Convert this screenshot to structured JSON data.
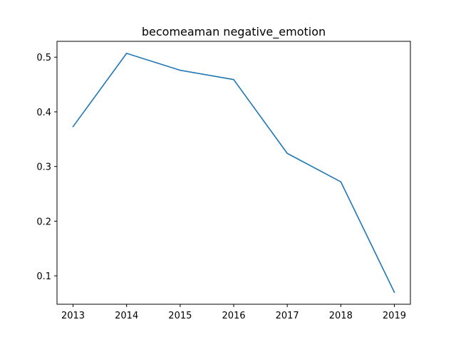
{
  "chart_data": {
    "type": "line",
    "title": "becomeaman negative_emotion",
    "xlabel": "",
    "ylabel": "",
    "x": [
      2013,
      2014,
      2015,
      2016,
      2017,
      2018,
      2019
    ],
    "x_tick_labels": [
      "2013",
      "2014",
      "2015",
      "2016",
      "2017",
      "2018",
      "2019"
    ],
    "series": [
      {
        "values": [
          0.373,
          0.507,
          0.476,
          0.459,
          0.324,
          0.272,
          0.07
        ],
        "color": "#1f77b4"
      }
    ],
    "xlim": [
      2012.7,
      2019.3
    ],
    "ylim": [
      0.048,
      0.529
    ],
    "y_ticks": [
      0.1,
      0.2,
      0.3,
      0.4,
      0.5
    ],
    "y_tick_labels": [
      "0.1",
      "0.2",
      "0.3",
      "0.4",
      "0.5"
    ],
    "grid": false,
    "legend": "none"
  }
}
